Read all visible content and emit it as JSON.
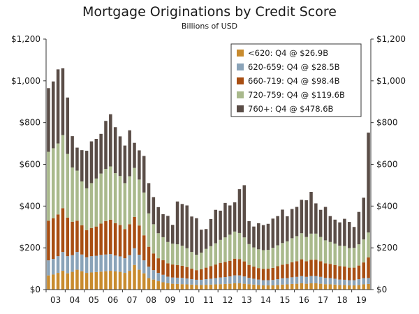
{
  "chart_data": {
    "type": "bar",
    "stacked": true,
    "title": "Mortgage Originations by Credit Score",
    "subtitle": "Billions of USD",
    "xlabel": "",
    "ylabel": "",
    "ylim": [
      0,
      1200
    ],
    "yticks": [
      "$0",
      "$200",
      "$400",
      "$600",
      "$800",
      "$1,000",
      "$1,200"
    ],
    "ytick_values": [
      0,
      200,
      400,
      600,
      800,
      1000,
      1200
    ],
    "axis_both_sides": true,
    "grid": false,
    "legend_position": "top-right",
    "year_labels": [
      "03",
      "04",
      "05",
      "06",
      "07",
      "08",
      "09",
      "10",
      "11",
      "12",
      "13",
      "14",
      "15",
      "16",
      "17",
      "18",
      "19"
    ],
    "colors": [
      "#c88b2e",
      "#8aa3b8",
      "#a84e12",
      "#a9b98c",
      "#5a4d47"
    ],
    "series": [
      {
        "name": "<620",
        "legend": "<620: Q4 @ $26.9B",
        "values": [
          68,
          72,
          80,
          90,
          78,
          85,
          95,
          88,
          80,
          82,
          84,
          86,
          88,
          90,
          87,
          85,
          80,
          90,
          118,
          95,
          78,
          55,
          48,
          40,
          35,
          30,
          28,
          27,
          26,
          25,
          24,
          22,
          22,
          23,
          24,
          25,
          26,
          27,
          28,
          30,
          30,
          28,
          26,
          24,
          22,
          20,
          20,
          20,
          22,
          24,
          25,
          27,
          28,
          30,
          28,
          30,
          30,
          28,
          26,
          25,
          24,
          22,
          22,
          20,
          20,
          22,
          25,
          26.9
        ]
      },
      {
        "name": "620-659",
        "legend": "620-659: Q4 @ $28.5B",
        "values": [
          72,
          75,
          80,
          90,
          82,
          80,
          85,
          80,
          75,
          78,
          78,
          80,
          80,
          80,
          76,
          74,
          70,
          75,
          80,
          72,
          62,
          55,
          45,
          40,
          36,
          32,
          30,
          30,
          30,
          28,
          26,
          25,
          25,
          27,
          28,
          30,
          32,
          33,
          35,
          38,
          38,
          35,
          30,
          28,
          26,
          25,
          25,
          26,
          28,
          30,
          30,
          32,
          33,
          35,
          33,
          35,
          35,
          33,
          30,
          30,
          28,
          26,
          25,
          25,
          25,
          28,
          30,
          28.5
        ]
      },
      {
        "name": "660-719",
        "legend": "660-719: Q4 @ $98.4B",
        "values": [
          190,
          195,
          200,
          210,
          185,
          160,
          150,
          140,
          130,
          135,
          140,
          150,
          160,
          165,
          155,
          150,
          140,
          148,
          150,
          140,
          120,
          95,
          80,
          70,
          70,
          64,
          62,
          60,
          58,
          55,
          50,
          46,
          50,
          55,
          60,
          65,
          70,
          72,
          75,
          80,
          78,
          72,
          62,
          58,
          55,
          54,
          55,
          58,
          62,
          65,
          68,
          72,
          75,
          80,
          75,
          78,
          78,
          75,
          70,
          68,
          66,
          64,
          64,
          60,
          60,
          65,
          75,
          98.4
        ]
      },
      {
        "name": "720-759",
        "legend": "720-759: Q4 @ $119.6B",
        "values": [
          330,
          335,
          340,
          350,
          305,
          260,
          240,
          210,
          200,
          215,
          230,
          240,
          250,
          255,
          240,
          235,
          220,
          230,
          235,
          220,
          205,
          160,
          140,
          120,
          110,
          102,
          100,
          100,
          96,
          90,
          80,
          74,
          80,
          90,
          96,
          102,
          110,
          118,
          125,
          130,
          125,
          115,
          100,
          92,
          90,
          90,
          90,
          96,
          100,
          104,
          108,
          115,
          120,
          125,
          116,
          125,
          125,
          116,
          110,
          105,
          102,
          98,
          98,
          94,
          95,
          102,
          110,
          119.6
        ]
      },
      {
        "name": "760+",
        "legend": "760+: Q4 @ $478.6B",
        "values": [
          305,
          320,
          355,
          320,
          270,
          150,
          110,
          150,
          180,
          200,
          190,
          190,
          230,
          250,
          220,
          190,
          180,
          220,
          120,
          140,
          175,
          145,
          130,
          125,
          110,
          125,
          90,
          205,
          200,
          205,
          170,
          175,
          110,
          95,
          130,
          160,
          140,
          165,
          140,
          140,
          210,
          250,
          110,
          100,
          125,
          120,
          125,
          140,
          140,
          160,
          120,
          140,
          140,
          160,
          176,
          200,
          145,
          130,
          160,
          124,
          115,
          112,
          130,
          125,
          100,
          155,
          200,
          478.6
        ]
      }
    ]
  }
}
